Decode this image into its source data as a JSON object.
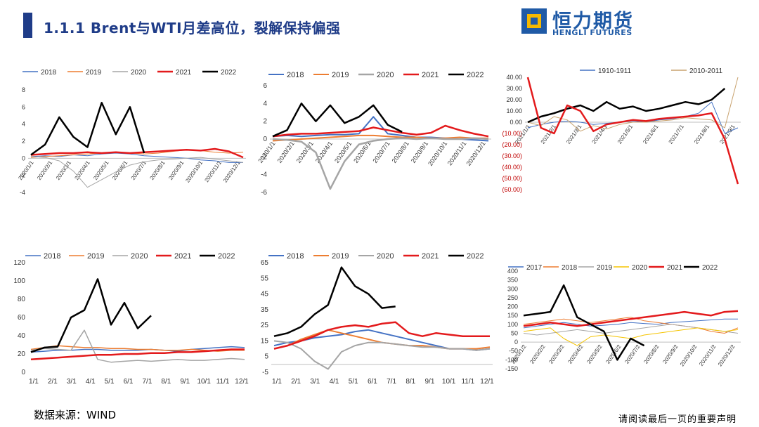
{
  "header": {
    "title": "1.1.1 Brent与WTI月差高位，裂解保持偏强",
    "logo_cn": "恒力期货",
    "logo_en": "HENGLI FUTURES"
  },
  "footer": {
    "source": "数据来源：WIND",
    "disclaimer": "请阅读最后一页的重要声明"
  },
  "chart_data": [
    {
      "type": "line",
      "ylim": [
        -4,
        8
      ],
      "yticks": [
        "-4",
        "-2",
        "0",
        "2",
        "4",
        "6",
        "8"
      ],
      "xticks": [
        "2020/1/1",
        "2020/2/1",
        "2020/3/1",
        "2020/4/1",
        "2020/5/1",
        "2020/6/1",
        "2020/7/1",
        "2020/8/1",
        "2020/9/1",
        "2020/10/1",
        "2020/11/1",
        "2020/12/1"
      ],
      "legend": "top",
      "series": [
        {
          "name": "2018",
          "color": "#4472c4",
          "width": 1,
          "values": [
            0.2,
            0.3,
            0.2,
            0.4,
            0.3,
            0.5,
            0.6,
            0.5,
            0.3,
            0.2,
            0.1,
            0.0,
            -0.2,
            -0.3,
            -0.5,
            -0.5
          ]
        },
        {
          "name": "2019",
          "color": "#ed7d31",
          "width": 1,
          "values": [
            0.1,
            0.2,
            0.3,
            0.4,
            0.5,
            0.6,
            0.7,
            0.6,
            0.5,
            0.6,
            0.8,
            1.0,
            0.9,
            0.7,
            0.6,
            0.7
          ]
        },
        {
          "name": "2020",
          "color": "#a5a5a5",
          "width": 1,
          "values": [
            0.2,
            0.1,
            -0.3,
            -1.5,
            -3.4,
            -2.5,
            -1.6,
            -0.8,
            -0.4,
            -0.2,
            -0.1,
            0.0,
            0.1,
            -0.1,
            -0.3,
            -0.5
          ]
        },
        {
          "name": "2021",
          "color": "#e31a1c",
          "width": 2.5,
          "values": [
            0.4,
            0.5,
            0.6,
            0.6,
            0.7,
            0.6,
            0.7,
            0.6,
            0.7,
            0.8,
            0.9,
            1.0,
            0.9,
            1.1,
            0.8,
            0.1
          ]
        },
        {
          "name": "2022",
          "color": "#000000",
          "width": 2.5,
          "values": [
            0.4,
            1.6,
            4.8,
            2.5,
            1.3,
            6.5,
            2.8,
            6.0,
            0.6,
            null,
            null,
            null,
            null,
            null,
            null,
            null
          ]
        }
      ]
    },
    {
      "type": "line",
      "ylim": [
        -6,
        6
      ],
      "yticks": [
        "-6",
        "-4",
        "-2",
        "0",
        "2",
        "4",
        "6"
      ],
      "xticks": [
        "2020/1/1",
        "2020/2/1",
        "2020/3/1",
        "2020/4/1",
        "2020/5/1",
        "2020/6/1",
        "2020/7/1",
        "2020/8/1",
        "2020/9/1",
        "2020/10/1",
        "2020/11/1",
        "2020/12/1"
      ],
      "legend": "top",
      "series": [
        {
          "name": "2018",
          "color": "#4472c4",
          "width": 2,
          "values": [
            0.3,
            0.4,
            0.3,
            0.4,
            0.5,
            0.5,
            0.6,
            2.5,
            0.6,
            0.4,
            0.2,
            0.2,
            0.1,
            0.0,
            -0.1,
            -0.2
          ]
        },
        {
          "name": "2019",
          "color": "#ed7d31",
          "width": 2,
          "values": [
            -0.2,
            -0.1,
            0.0,
            0.1,
            0.2,
            0.3,
            0.4,
            0.4,
            0.3,
            0.2,
            0.2,
            0.1,
            0.1,
            0.2,
            0.1,
            0.1
          ]
        },
        {
          "name": "2020",
          "color": "#a5a5a5",
          "width": 2.5,
          "values": [
            0.0,
            -0.1,
            -0.3,
            -1.5,
            -5.6,
            -2.5,
            -0.6,
            -0.2,
            0.0,
            0.1,
            0.0,
            0.1,
            0.0,
            0.0,
            0.1,
            0.0
          ]
        },
        {
          "name": "2021",
          "color": "#e31a1c",
          "width": 2.5,
          "values": [
            0.3,
            0.5,
            0.6,
            0.6,
            0.7,
            0.8,
            0.9,
            1.3,
            1.0,
            0.7,
            0.5,
            0.7,
            1.5,
            1.0,
            0.6,
            0.3
          ]
        },
        {
          "name": "2022",
          "color": "#000000",
          "width": 2.5,
          "values": [
            0.3,
            1.0,
            4.0,
            2.0,
            3.8,
            1.8,
            2.5,
            3.8,
            1.6,
            0.8,
            null,
            null,
            null,
            null,
            null,
            null
          ]
        }
      ]
    },
    {
      "type": "line",
      "ylim": [
        -60,
        40
      ],
      "yticks": [
        "(60.00)",
        "(50.00)",
        "(40.00)",
        "(30.00)",
        "(20.00)",
        "(10.00)",
        "0.00",
        "10.00",
        "20.00",
        "30.00",
        "40.00"
      ],
      "xticks": [
        "2021/1/1",
        "2021/2/1",
        "2021/3/1",
        "2021/4/1",
        "2021/5/1",
        "2021/6/1",
        "2021/7/1",
        "2021/8/1",
        "2021/9/1"
      ],
      "legend": "top",
      "series": [
        {
          "name": "1910-1911",
          "color": "#4472c4",
          "width": 1,
          "values": [
            -5,
            -2,
            0,
            1,
            0,
            -2,
            -1,
            0,
            1,
            0,
            2,
            3,
            5,
            8,
            18,
            -10,
            -5
          ]
        },
        {
          "name": "2010-2011",
          "color": "#c8a26e",
          "width": 1,
          "values": [
            0,
            -3,
            5,
            2,
            -8,
            -3,
            -6,
            -2,
            0,
            0,
            1,
            2,
            4,
            3,
            2,
            -5,
            40
          ]
        },
        {
          "name": "",
          "color": "#000000",
          "width": 2.5,
          "values": [
            0,
            5,
            8,
            12,
            15,
            10,
            18,
            12,
            14,
            10,
            12,
            15,
            18,
            16,
            20,
            30,
            null
          ]
        },
        {
          "name": "",
          "color": "#e31a1c",
          "width": 2.5,
          "values": [
            40,
            -5,
            -10,
            15,
            10,
            -8,
            -2,
            0,
            2,
            1,
            3,
            4,
            5,
            6,
            8,
            -15,
            -55
          ]
        }
      ]
    },
    {
      "type": "line",
      "ylim": [
        0,
        120
      ],
      "yticks": [
        "0",
        "20",
        "40",
        "60",
        "80",
        "100",
        "120"
      ],
      "xticks": [
        "1/1",
        "2/1",
        "3/1",
        "4/1",
        "5/1",
        "6/1",
        "7/1",
        "8/1",
        "9/1",
        "10/1",
        "11/1",
        "12/1"
      ],
      "legend": "top",
      "series": [
        {
          "name": "2018",
          "color": "#4472c4",
          "width": 1.5,
          "values": [
            22,
            23,
            24,
            24,
            25,
            25,
            24,
            24,
            24,
            25,
            24,
            23,
            25,
            26,
            27,
            28,
            27
          ]
        },
        {
          "name": "2019",
          "color": "#ed7d31",
          "width": 1.5,
          "values": [
            25,
            27,
            29,
            28,
            27,
            27,
            26,
            26,
            25,
            25,
            24,
            24,
            25,
            24,
            23,
            24,
            24
          ]
        },
        {
          "name": "2020",
          "color": "#a5a5a5",
          "width": 1.5,
          "values": [
            24,
            26,
            25,
            24,
            46,
            14,
            11,
            12,
            13,
            12,
            13,
            14,
            13,
            13,
            14,
            15,
            14
          ]
        },
        {
          "name": "2021",
          "color": "#e31a1c",
          "width": 2.5,
          "values": [
            14,
            15,
            16,
            17,
            18,
            19,
            19,
            20,
            20,
            21,
            21,
            22,
            22,
            23,
            24,
            25,
            25
          ]
        },
        {
          "name": "2022",
          "color": "#000000",
          "width": 2.5,
          "values": [
            22,
            27,
            28,
            60,
            68,
            102,
            52,
            76,
            48,
            62,
            null,
            null,
            null,
            null,
            null,
            null,
            null
          ]
        }
      ]
    },
    {
      "type": "line",
      "ylim": [
        -5,
        65
      ],
      "yticks": [
        "-5",
        "5",
        "15",
        "25",
        "35",
        "45",
        "55",
        "65"
      ],
      "xticks": [
        "1/1",
        "2/1",
        "3/1",
        "4/1",
        "5/1",
        "6/1",
        "7/1",
        "8/1",
        "9/1",
        "10/1",
        "11/1",
        "12/1"
      ],
      "legend": "top",
      "series": [
        {
          "name": "2018",
          "color": "#4472c4",
          "width": 2,
          "values": [
            12,
            14,
            15,
            17,
            18,
            19,
            21,
            22,
            20,
            18,
            16,
            14,
            12,
            10,
            10,
            9,
            10
          ]
        },
        {
          "name": "2019",
          "color": "#ed7d31",
          "width": 2,
          "values": [
            10,
            12,
            16,
            19,
            22,
            20,
            18,
            16,
            14,
            13,
            12,
            12,
            11,
            10,
            10,
            10,
            11
          ]
        },
        {
          "name": "2020",
          "color": "#a5a5a5",
          "width": 2,
          "values": [
            15,
            14,
            10,
            2,
            -3,
            8,
            12,
            14,
            14,
            13,
            12,
            11,
            11,
            10,
            10,
            9,
            10
          ]
        },
        {
          "name": "2021",
          "color": "#e31a1c",
          "width": 2.5,
          "values": [
            10,
            12,
            15,
            18,
            22,
            24,
            25,
            24,
            26,
            27,
            20,
            18,
            20,
            19,
            18,
            18,
            18
          ]
        },
        {
          "name": "2022",
          "color": "#000000",
          "width": 2.5,
          "values": [
            18,
            20,
            24,
            32,
            38,
            62,
            50,
            45,
            36,
            37,
            null,
            null,
            null,
            null,
            null,
            null,
            null
          ]
        }
      ]
    },
    {
      "type": "line",
      "ylim": [
        -150,
        400
      ],
      "yticks": [
        "-150",
        "-100",
        "-50",
        "0",
        "50",
        "100",
        "150",
        "200",
        "250",
        "300",
        "350",
        "400"
      ],
      "xticks": [
        "2020/1/2",
        "2020/2/2",
        "2020/3/2",
        "2020/4/2",
        "2020/5/2",
        "2020/6/2",
        "2020/7/2",
        "2020/8/2",
        "2020/9/2",
        "2020/10/2",
        "2020/11/2",
        "2020/12/2"
      ],
      "legend": "top",
      "series": [
        {
          "name": "2017",
          "color": "#4472c4",
          "width": 1,
          "values": [
            80,
            90,
            100,
            110,
            100,
            90,
            95,
            100,
            110,
            105,
            100,
            110,
            115,
            120,
            125,
            130,
            130
          ]
        },
        {
          "name": "2018",
          "color": "#ed7d31",
          "width": 1,
          "values": [
            100,
            110,
            120,
            130,
            120,
            110,
            120,
            130,
            140,
            120,
            110,
            100,
            90,
            80,
            60,
            50,
            80
          ]
        },
        {
          "name": "2019",
          "color": "#a5a5a5",
          "width": 1,
          "values": [
            50,
            40,
            50,
            60,
            70,
            60,
            50,
            60,
            70,
            80,
            90,
            100,
            90,
            80,
            70,
            60,
            50
          ]
        },
        {
          "name": "2020",
          "color": "#f5c400",
          "width": 1,
          "values": [
            60,
            70,
            80,
            20,
            -20,
            30,
            40,
            30,
            20,
            40,
            50,
            60,
            70,
            80,
            70,
            60,
            70
          ]
        },
        {
          "name": "2021",
          "color": "#e31a1c",
          "width": 2.5,
          "values": [
            90,
            100,
            110,
            100,
            90,
            100,
            110,
            120,
            130,
            140,
            150,
            160,
            170,
            160,
            150,
            170,
            175
          ]
        },
        {
          "name": "2022",
          "color": "#000000",
          "width": 2.5,
          "values": [
            150,
            160,
            170,
            320,
            140,
            100,
            60,
            -100,
            20,
            -20,
            null,
            null,
            null,
            null,
            null,
            null,
            null
          ]
        }
      ]
    }
  ]
}
